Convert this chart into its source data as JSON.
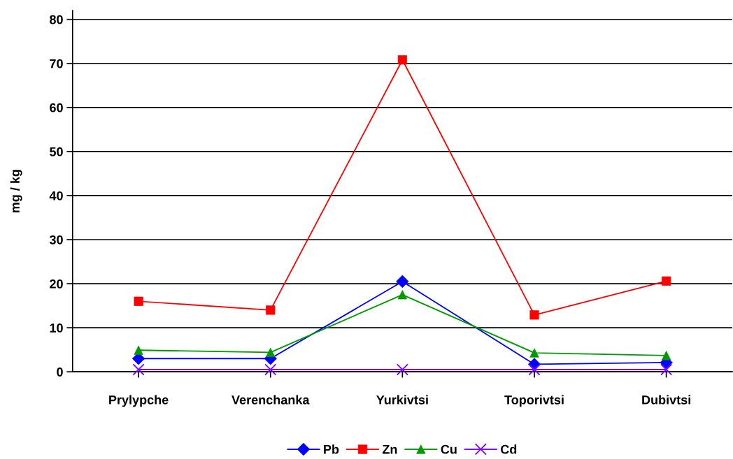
{
  "chart_data": {
    "type": "line",
    "ylabel": "mg / kg",
    "categories": [
      "Prylypche",
      "Verenchanka",
      "Yurkivtsi",
      "Toporivtsi",
      "Dubivtsi"
    ],
    "series": [
      {
        "name": "Pb",
        "color": "#0000ff",
        "marker": "diamond",
        "values": [
          3.0,
          3.0,
          20.5,
          1.7,
          2.1
        ]
      },
      {
        "name": "Zn",
        "color": "#ff0000",
        "marker": "square",
        "values": [
          16.0,
          14.0,
          70.8,
          12.9,
          20.6
        ]
      },
      {
        "name": "Cu",
        "color": "#009900",
        "marker": "triangle",
        "values": [
          4.9,
          4.4,
          17.5,
          4.3,
          3.7
        ]
      },
      {
        "name": "Cd",
        "color": "#7f00ff",
        "marker": "cross",
        "values": [
          0.5,
          0.5,
          0.5,
          0.5,
          0.5
        ]
      }
    ],
    "ylim": [
      0,
      82
    ],
    "yticks": [
      0,
      10,
      20,
      30,
      40,
      50,
      60,
      70,
      80
    ],
    "grid": "y",
    "legend": "bottom",
    "line_style": "solid"
  }
}
